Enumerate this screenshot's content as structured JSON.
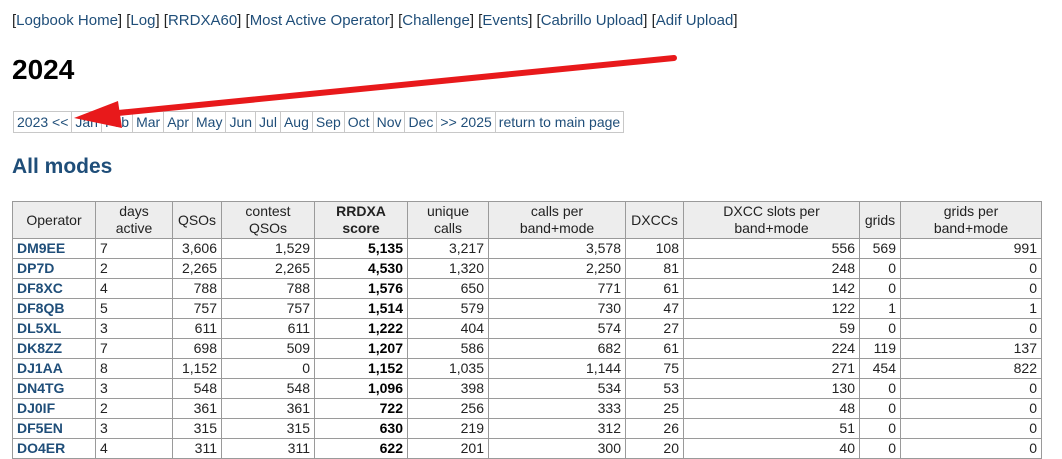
{
  "topnav": {
    "links": [
      "Logbook Home",
      "Log",
      "RRDXA60",
      "Most Active Operator",
      "Challenge",
      "Events",
      "Cabrillo Upload",
      "Adif Upload"
    ]
  },
  "year_title": "2024",
  "monthnav": {
    "prev": "2023 <<",
    "months": [
      "Jan",
      "Feb",
      "Mar",
      "Apr",
      "May",
      "Jun",
      "Jul",
      "Aug",
      "Sep",
      "Oct",
      "Nov",
      "Dec"
    ],
    "next": ">> 2025",
    "main": "return to main page"
  },
  "modes_title": "All modes",
  "table": {
    "headers": {
      "operator": "Operator",
      "days1": "days",
      "days2": "active",
      "qsos": "QSOs",
      "contest1": "contest",
      "contest2": "QSOs",
      "rrdxa1": "RRDXA",
      "rrdxa2": "score",
      "unique1": "unique",
      "unique2": "calls",
      "cpb1": "calls per",
      "cpb2": "band+mode",
      "dxccs": "DXCCs",
      "dxslot1": "DXCC slots per",
      "dxslot2": "band+mode",
      "grids": "grids",
      "gpb1": "grids per",
      "gpb2": "band+mode"
    },
    "rows": [
      {
        "call": "DM9EE",
        "days": "7",
        "qsos": "3,606",
        "contest": "1,529",
        "score": "5,135",
        "unique": "3,217",
        "cpb": "3,578",
        "dxcc": "108",
        "slots": "556",
        "grids": "569",
        "gpb": "991"
      },
      {
        "call": "DP7D",
        "days": "2",
        "qsos": "2,265",
        "contest": "2,265",
        "score": "4,530",
        "unique": "1,320",
        "cpb": "2,250",
        "dxcc": "81",
        "slots": "248",
        "grids": "0",
        "gpb": "0"
      },
      {
        "call": "DF8XC",
        "days": "4",
        "qsos": "788",
        "contest": "788",
        "score": "1,576",
        "unique": "650",
        "cpb": "771",
        "dxcc": "61",
        "slots": "142",
        "grids": "0",
        "gpb": "0"
      },
      {
        "call": "DF8QB",
        "days": "5",
        "qsos": "757",
        "contest": "757",
        "score": "1,514",
        "unique": "579",
        "cpb": "730",
        "dxcc": "47",
        "slots": "122",
        "grids": "1",
        "gpb": "1"
      },
      {
        "call": "DL5XL",
        "days": "3",
        "qsos": "611",
        "contest": "611",
        "score": "1,222",
        "unique": "404",
        "cpb": "574",
        "dxcc": "27",
        "slots": "59",
        "grids": "0",
        "gpb": "0"
      },
      {
        "call": "DK8ZZ",
        "days": "7",
        "qsos": "698",
        "contest": "509",
        "score": "1,207",
        "unique": "586",
        "cpb": "682",
        "dxcc": "61",
        "slots": "224",
        "grids": "119",
        "gpb": "137"
      },
      {
        "call": "DJ1AA",
        "days": "8",
        "qsos": "1,152",
        "contest": "0",
        "score": "1,152",
        "unique": "1,035",
        "cpb": "1,144",
        "dxcc": "75",
        "slots": "271",
        "grids": "454",
        "gpb": "822"
      },
      {
        "call": "DN4TG",
        "days": "3",
        "qsos": "548",
        "contest": "548",
        "score": "1,096",
        "unique": "398",
        "cpb": "534",
        "dxcc": "53",
        "slots": "130",
        "grids": "0",
        "gpb": "0"
      },
      {
        "call": "DJ0IF",
        "days": "2",
        "qsos": "361",
        "contest": "361",
        "score": "722",
        "unique": "256",
        "cpb": "333",
        "dxcc": "25",
        "slots": "48",
        "grids": "0",
        "gpb": "0"
      },
      {
        "call": "DF5EN",
        "days": "3",
        "qsos": "315",
        "contest": "315",
        "score": "630",
        "unique": "219",
        "cpb": "312",
        "dxcc": "26",
        "slots": "51",
        "grids": "0",
        "gpb": "0"
      },
      {
        "call": "DO4ER",
        "days": "4",
        "qsos": "311",
        "contest": "311",
        "score": "622",
        "unique": "201",
        "cpb": "300",
        "dxcc": "20",
        "slots": "40",
        "grids": "0",
        "gpb": "0"
      }
    ]
  },
  "colors": {
    "link": "#1f4e79",
    "arrow": "#e8191b",
    "header_bg": "#ededed"
  },
  "icons": {
    "annotation": "red-arrow-icon"
  }
}
